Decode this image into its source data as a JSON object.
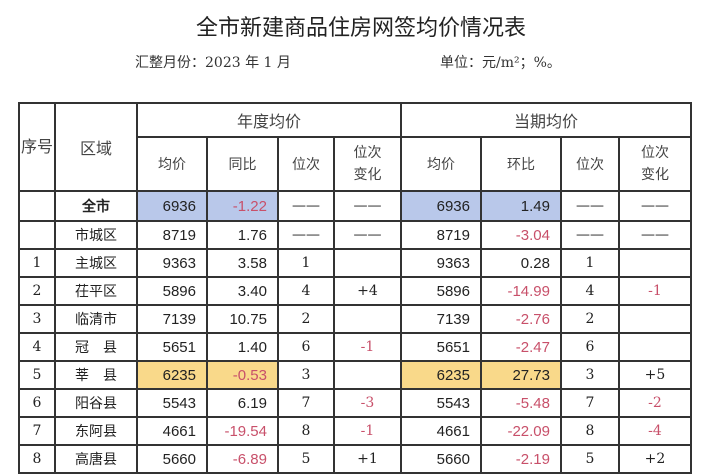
{
  "title": "全市新建商品住房网签均价情况表",
  "period": "汇整月份：2023 年 1 月",
  "unit": "单位：元/m²；%。",
  "headers": {
    "seq": "序号",
    "area": "区域",
    "annual": "年度均价",
    "current": "当期均价",
    "avg": "均价",
    "yoy": "同比",
    "rank": "位次",
    "rank_change": "位次变化",
    "mom": "环比"
  },
  "highlight_colors": {
    "total": "#b9c8ea",
    "highlight": "#f9d98a",
    "negative": "#c8506a"
  },
  "rows": [
    {
      "seq": "",
      "area": "全市",
      "a_avg": "6936",
      "a_yoy": "-1.22",
      "a_rank": "——",
      "a_chg": "——",
      "c_avg": "6936",
      "c_mom": "1.49",
      "c_rank": "——",
      "c_chg": "——"
    },
    {
      "seq": "",
      "area": "市城区",
      "a_avg": "8719",
      "a_yoy": "1.76",
      "a_rank": "——",
      "a_chg": "——",
      "c_avg": "8719",
      "c_mom": "-3.04",
      "c_rank": "——",
      "c_chg": "——"
    },
    {
      "seq": "1",
      "area": "主城区",
      "a_avg": "9363",
      "a_yoy": "3.58",
      "a_rank": "1",
      "a_chg": "",
      "c_avg": "9363",
      "c_mom": "0.28",
      "c_rank": "1",
      "c_chg": ""
    },
    {
      "seq": "2",
      "area": "茌平区",
      "a_avg": "5896",
      "a_yoy": "3.40",
      "a_rank": "4",
      "a_chg": "+4",
      "c_avg": "5896",
      "c_mom": "-14.99",
      "c_rank": "4",
      "c_chg": "-1"
    },
    {
      "seq": "3",
      "area": "临清市",
      "a_avg": "7139",
      "a_yoy": "10.75",
      "a_rank": "2",
      "a_chg": "",
      "c_avg": "7139",
      "c_mom": "-2.76",
      "c_rank": "2",
      "c_chg": ""
    },
    {
      "seq": "4",
      "area": "冠　县",
      "a_avg": "5651",
      "a_yoy": "1.40",
      "a_rank": "6",
      "a_chg": "-1",
      "c_avg": "5651",
      "c_mom": "-2.47",
      "c_rank": "6",
      "c_chg": ""
    },
    {
      "seq": "5",
      "area": "莘　县",
      "a_avg": "6235",
      "a_yoy": "-0.53",
      "a_rank": "3",
      "a_chg": "",
      "c_avg": "6235",
      "c_mom": "27.73",
      "c_rank": "3",
      "c_chg": "+5"
    },
    {
      "seq": "6",
      "area": "阳谷县",
      "a_avg": "5543",
      "a_yoy": "6.19",
      "a_rank": "7",
      "a_chg": "-3",
      "c_avg": "5543",
      "c_mom": "-5.48",
      "c_rank": "7",
      "c_chg": "-2"
    },
    {
      "seq": "7",
      "area": "东阿县",
      "a_avg": "4661",
      "a_yoy": "-19.54",
      "a_rank": "8",
      "a_chg": "-1",
      "c_avg": "4661",
      "c_mom": "-22.09",
      "c_rank": "8",
      "c_chg": "-4"
    },
    {
      "seq": "8",
      "area": "高唐县",
      "a_avg": "5660",
      "a_yoy": "-6.89",
      "a_rank": "5",
      "a_chg": "+1",
      "c_avg": "5660",
      "c_mom": "-2.19",
      "c_rank": "5",
      "c_chg": "+2"
    }
  ]
}
